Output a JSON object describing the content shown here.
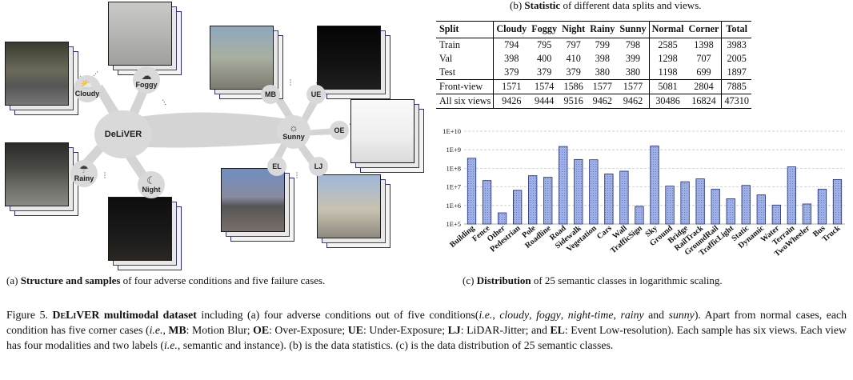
{
  "panel_a": {
    "caption_bold": "Structure and samples",
    "caption_prefix": "(a)",
    "caption_rest": " of four adverse conditions and five failure cases.",
    "hub_label": "DeLiVER",
    "conditions": [
      {
        "label": "Cloudy",
        "icon": "cloud-sun-icon"
      },
      {
        "label": "Foggy",
        "icon": "fog-icon"
      },
      {
        "label": "Rainy",
        "icon": "rain-cloud-icon"
      },
      {
        "label": "Night",
        "icon": "moon-icon"
      }
    ],
    "sunny": {
      "label": "Sunny",
      "icon": "sun-icon"
    },
    "failure_cases": [
      "MB",
      "UE",
      "OE",
      "LJ",
      "EL"
    ],
    "ellipsis": "…"
  },
  "panel_b": {
    "caption_prefix": "(b)",
    "caption_bold": "Statistic",
    "caption_rest": " of different data splits and views.",
    "headers": [
      "Split",
      "Cloudy",
      "Foggy",
      "Night",
      "Rainy",
      "Sunny",
      "Normal",
      "Corner",
      "Total"
    ],
    "rows": [
      [
        "Train",
        "794",
        "795",
        "797",
        "799",
        "798",
        "2585",
        "1398",
        "3983"
      ],
      [
        "Val",
        "398",
        "400",
        "410",
        "398",
        "399",
        "1298",
        "707",
        "2005"
      ],
      [
        "Test",
        "379",
        "379",
        "379",
        "380",
        "380",
        "1198",
        "699",
        "1897"
      ],
      [
        "Front-view",
        "1571",
        "1574",
        "1586",
        "1577",
        "1577",
        "5081",
        "2804",
        "7885"
      ],
      [
        "All six views",
        "9426",
        "9444",
        "9516",
        "9462",
        "9462",
        "30486",
        "16824",
        "47310"
      ]
    ]
  },
  "panel_c": {
    "caption_prefix": "(c)",
    "caption_bold": "Distribution",
    "caption_rest": " of 25 semantic classes in logarithmic scaling."
  },
  "chart_data": {
    "type": "bar",
    "scale": "log",
    "title": "",
    "xlabel": "",
    "ylabel": "",
    "ylim": [
      100000,
      10000000000
    ],
    "y_ticks": [
      "1E+5",
      "1E+6",
      "1E+7",
      "1E+8",
      "1E+9",
      "1E+10"
    ],
    "grid": true,
    "bar_color": "#9fb0e6",
    "categories": [
      "Building",
      "Fence",
      "Other",
      "Pedestrian",
      "Pole",
      "Roadline",
      "Road",
      "Sidewalk",
      "Vegetation",
      "Cars",
      "Wall",
      "TrafficSign",
      "Sky",
      "Ground",
      "Bridge",
      "RailTrack",
      "GroundRail",
      "TrafficLight",
      "Static",
      "Dynamic",
      "Water",
      "Terrain",
      "TwoWheeler",
      "Bus",
      "Truck"
    ],
    "values": [
      350000000,
      22000000,
      400000,
      6500000,
      40000000,
      33000000,
      1500000000,
      300000000,
      290000000,
      50000000,
      70000000,
      900000,
      1600000000,
      11000000,
      19000000,
      27000000,
      7500000,
      2300000,
      12000000,
      3700000,
      1050000,
      120000000,
      1200000,
      7500000,
      25000000
    ]
  },
  "figure_caption": {
    "lead": "Figure 5. ",
    "title_first": "D",
    "title_sc1": "e",
    "title_mid": "L",
    "title_sc2": "i",
    "title_end": "VER",
    "title_rest": " multimodal dataset",
    "body": " including (a) four adverse conditions out of five conditions(",
    "ie1": "i.e.",
    "c1": "cloudy",
    "c2": "foggy",
    "c3": "night-time",
    "c4": "rainy",
    "c5": "sunny",
    "p2": "). Apart from normal cases, each condition has five corner cases (",
    "ie2": "i.e.",
    "mb": "MB",
    "mb_t": ": Motion Blur; ",
    "oe": "OE",
    "oe_t": ": Over-Exposure; ",
    "ue": "UE",
    "ue_t": ": Under-Exposure; ",
    "lj": "LJ",
    "lj_t": ": LiDAR-Jitter; and ",
    "el": "EL",
    "el_t": ": Event Low-resolution). Each sample has six views. Each view has four modalities and two labels (",
    "ie3": "i.e.",
    "end": ", semantic and instance). (b) is the data statistics. (c) is the data distribution of 25 semantic classes."
  }
}
